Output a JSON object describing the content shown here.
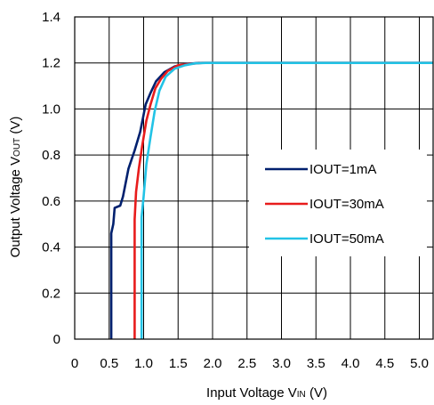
{
  "chart_data": {
    "type": "line",
    "xlabel": {
      "main": "Input Voltage V",
      "sub": "IN",
      "unit": " (V)"
    },
    "ylabel": {
      "main": "Output Voltage V",
      "sub": "OUT",
      "unit": " (V)"
    },
    "xlim": [
      0,
      5.2
    ],
    "ylim": [
      0,
      1.4
    ],
    "x_ticks": [
      "0",
      "0.5",
      "1.0",
      "1.5",
      "2.0",
      "2.5",
      "3.0",
      "3.5",
      "4.0",
      "4.5",
      "5.0"
    ],
    "x_tick_values": [
      0,
      0.5,
      1.0,
      1.5,
      2.0,
      2.5,
      3.0,
      3.5,
      4.0,
      4.5,
      5.0
    ],
    "y_ticks": [
      "0",
      "0.2",
      "0.4",
      "0.6",
      "0.8",
      "1.0",
      "1.2",
      "1.4"
    ],
    "y_tick_values": [
      0,
      0.2,
      0.4,
      0.6,
      0.8,
      1.0,
      1.2,
      1.4
    ],
    "grid": true,
    "legend_position": "right-middle",
    "series": [
      {
        "name": "IOUT=1mA",
        "color": "#00206e",
        "points": [
          [
            0.53,
            0
          ],
          [
            0.53,
            0.46
          ],
          [
            0.56,
            0.5
          ],
          [
            0.58,
            0.57
          ],
          [
            0.66,
            0.58
          ],
          [
            0.7,
            0.62
          ],
          [
            0.78,
            0.74
          ],
          [
            0.87,
            0.82
          ],
          [
            0.95,
            0.9
          ],
          [
            1.03,
            1.02
          ],
          [
            1.1,
            1.07
          ],
          [
            1.18,
            1.12
          ],
          [
            1.3,
            1.16
          ],
          [
            1.45,
            1.185
          ],
          [
            1.6,
            1.195
          ],
          [
            1.8,
            1.2
          ],
          [
            5.2,
            1.2
          ]
        ]
      },
      {
        "name": "IOUT=30mA",
        "color": "#e81c1c",
        "points": [
          [
            0.87,
            0
          ],
          [
            0.87,
            0.52
          ],
          [
            0.89,
            0.64
          ],
          [
            0.93,
            0.74
          ],
          [
            0.98,
            0.84
          ],
          [
            1.04,
            0.95
          ],
          [
            1.1,
            1.02
          ],
          [
            1.17,
            1.09
          ],
          [
            1.25,
            1.13
          ],
          [
            1.35,
            1.165
          ],
          [
            1.5,
            1.19
          ],
          [
            1.65,
            1.195
          ],
          [
            1.85,
            1.2
          ],
          [
            5.2,
            1.2
          ]
        ]
      },
      {
        "name": "IOUT=50mA",
        "color": "#22c3e6",
        "points": [
          [
            0.97,
            0
          ],
          [
            0.97,
            0.53
          ],
          [
            1.0,
            0.62
          ],
          [
            1.04,
            0.76
          ],
          [
            1.1,
            0.88
          ],
          [
            1.16,
            0.99
          ],
          [
            1.23,
            1.08
          ],
          [
            1.32,
            1.14
          ],
          [
            1.45,
            1.175
          ],
          [
            1.6,
            1.19
          ],
          [
            1.75,
            1.198
          ],
          [
            1.9,
            1.2
          ],
          [
            5.2,
            1.2
          ]
        ]
      }
    ]
  }
}
